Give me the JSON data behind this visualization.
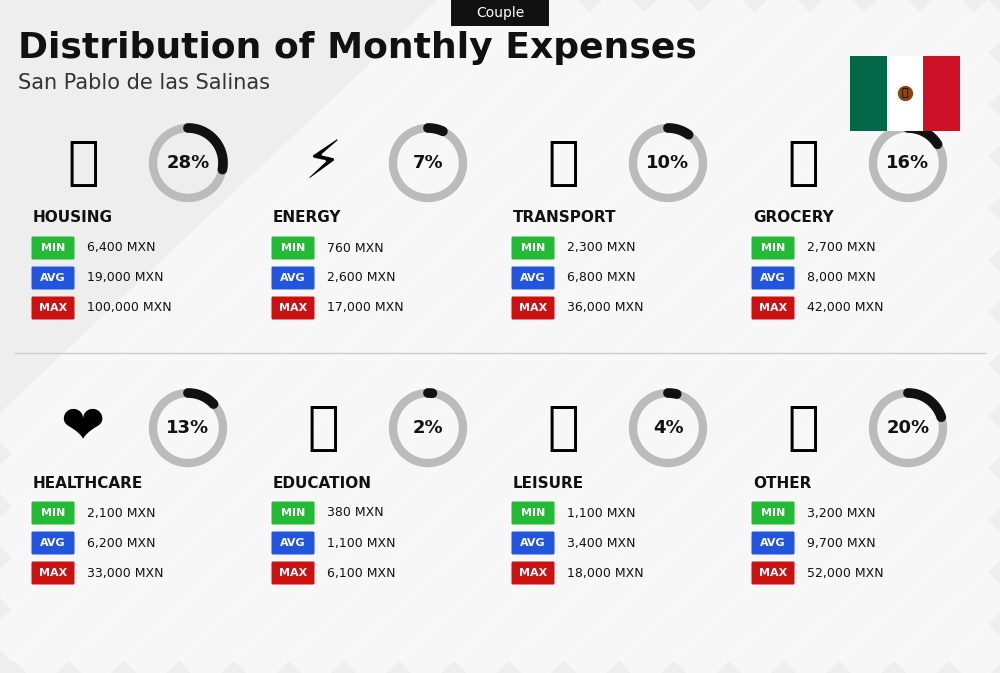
{
  "title": "Distribution of Monthly Expenses",
  "subtitle": "San Pablo de las Salinas",
  "tag": "Couple",
  "bg_color": "#eeeeee",
  "categories": [
    {
      "name": "HOUSING",
      "pct": 28,
      "min": "6,400 MXN",
      "avg": "19,000 MXN",
      "max": "100,000 MXN",
      "emoji": "🏙"
    },
    {
      "name": "ENERGY",
      "pct": 7,
      "min": "760 MXN",
      "avg": "2,600 MXN",
      "max": "17,000 MXN",
      "emoji": "⚡"
    },
    {
      "name": "TRANSPORT",
      "pct": 10,
      "min": "2,300 MXN",
      "avg": "6,800 MXN",
      "max": "36,000 MXN",
      "emoji": "🚌"
    },
    {
      "name": "GROCERY",
      "pct": 16,
      "min": "2,700 MXN",
      "avg": "8,000 MXN",
      "max": "42,000 MXN",
      "emoji": "🛒"
    },
    {
      "name": "HEALTHCARE",
      "pct": 13,
      "min": "2,100 MXN",
      "avg": "6,200 MXN",
      "max": "33,000 MXN",
      "emoji": "❤"
    },
    {
      "name": "EDUCATION",
      "pct": 2,
      "min": "380 MXN",
      "avg": "1,100 MXN",
      "max": "6,100 MXN",
      "emoji": "🎓"
    },
    {
      "name": "LEISURE",
      "pct": 4,
      "min": "1,100 MXN",
      "avg": "3,400 MXN",
      "max": "18,000 MXN",
      "emoji": "🛍"
    },
    {
      "name": "OTHER",
      "pct": 20,
      "min": "3,200 MXN",
      "avg": "9,700 MXN",
      "max": "52,000 MXN",
      "emoji": "👜"
    }
  ],
  "color_min": "#22bb33",
  "color_avg": "#2255dd",
  "color_max": "#cc1111",
  "donut_dark": "#111111",
  "donut_light": "#bbbbbb",
  "label_color": "#111111",
  "name_color": "#111111",
  "title_color": "#111111",
  "sub_color": "#333333",
  "stripe_color": "#ffffff",
  "flag_colors": [
    "#006847",
    "#ffffff",
    "#ce1126"
  ]
}
